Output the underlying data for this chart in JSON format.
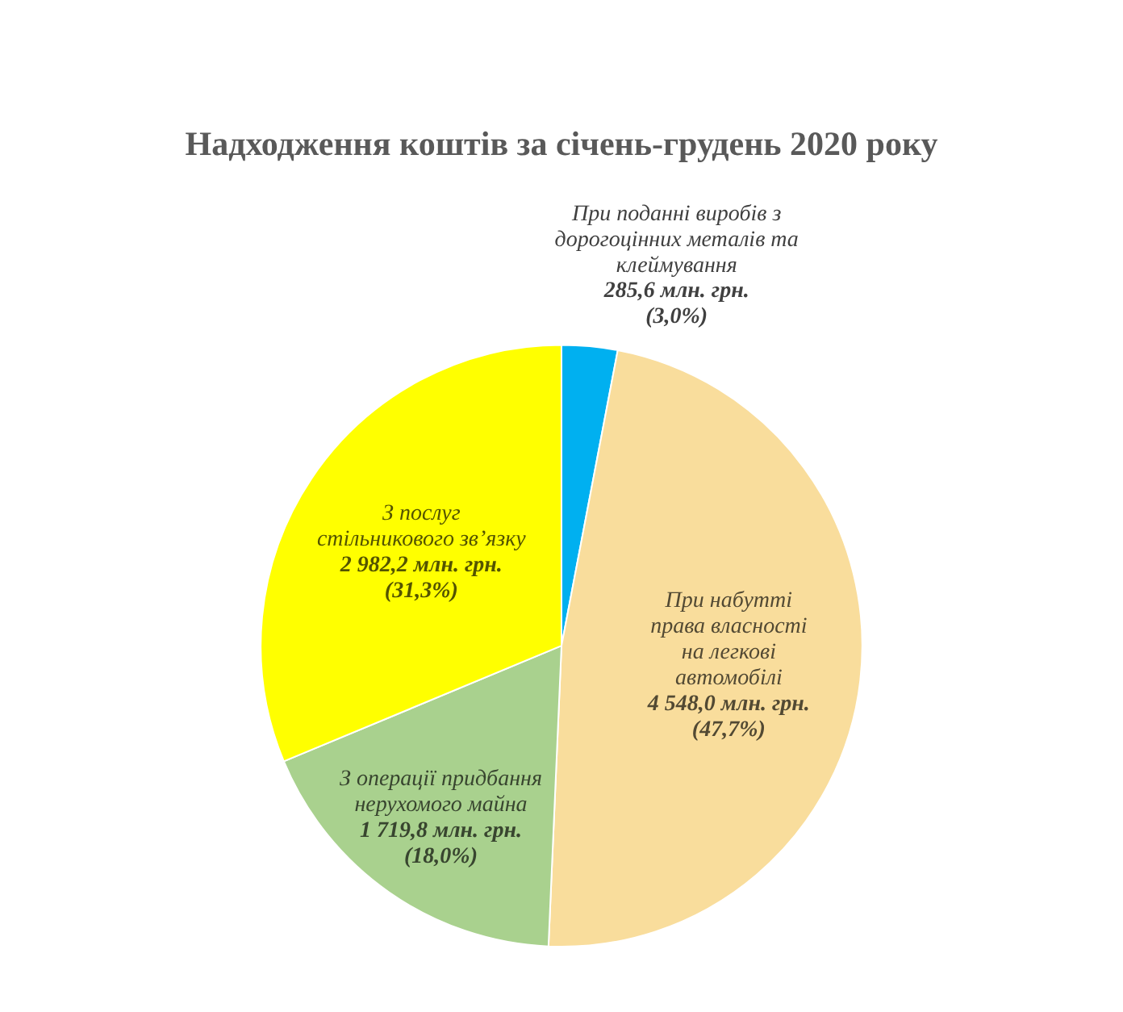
{
  "chart_data": {
    "type": "pie",
    "title": "Надходження коштів за січень-грудень 2020 року",
    "categories": [
      "При поданні виробів з\nдорогоцінних металів та\nклеймування",
      "При набутті\nправа власності\nна легкові\nавтомобілі",
      "З операції придбання\nнерухомого майна",
      "З послуг\nстільникового зв’язку"
    ],
    "values": [
      285.6,
      4548.0,
      1719.8,
      2982.2
    ],
    "colors": [
      "#00b0f0",
      "#f9dd9c",
      "#a9d18e",
      "#ffff00"
    ],
    "value_labels": [
      "285,6 млн. грн.\n(3,0%)",
      "4 548,0 млн. грн.\n(47,7%)",
      "1 719,8 млн. грн.\n(18,0%)",
      "2 982,2 млн. грн.\n(31,3%)"
    ],
    "legend": false
  }
}
